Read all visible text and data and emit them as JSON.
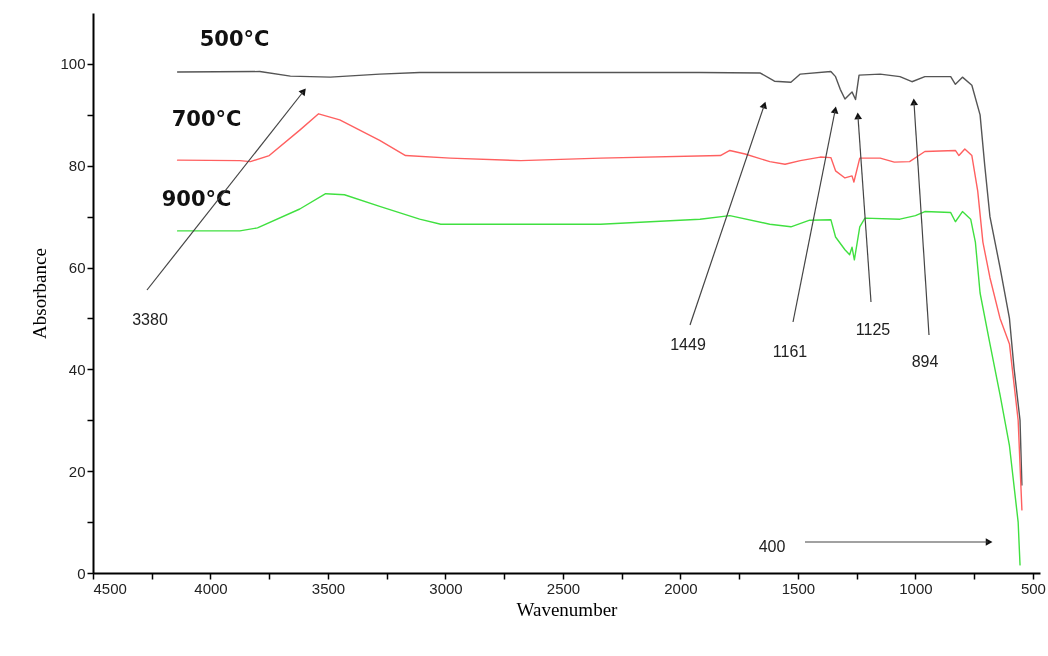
{
  "chart_data": {
    "type": "line",
    "xlabel": "Wavenumber",
    "ylabel": "Absorbance",
    "xlim": [
      4500,
      470
    ],
    "ylim": [
      0,
      110
    ],
    "xticks": [
      4500,
      {
        "value": 4250,
        "label": null
      },
      4000,
      {
        "value": 3750,
        "label": null
      },
      3500,
      {
        "value": 3250,
        "label": null
      },
      3000,
      {
        "value": 2750,
        "label": null
      },
      2500,
      {
        "value": 2250,
        "label": null
      },
      2000,
      {
        "value": 1750,
        "label": null
      },
      1500,
      {
        "value": 1250,
        "label": null
      },
      1000,
      {
        "value": 750,
        "label": null
      },
      500
    ],
    "yticks": [
      0,
      {
        "value": 10,
        "label": null
      },
      20,
      {
        "value": 30,
        "label": null
      },
      40,
      {
        "value": 50,
        "label": null
      },
      60,
      {
        "value": 70,
        "label": null
      },
      80,
      {
        "value": 90,
        "label": null
      },
      100
    ],
    "grid": false,
    "marker": "none",
    "line_style": "solid",
    "series": [
      {
        "name": "500°C",
        "color": "#555555",
        "x": [
          4140,
          3790,
          3660,
          3490,
          3280,
          3110,
          1917,
          1660,
          1600,
          1530,
          1490,
          1360,
          1340,
          1320,
          1300,
          1270,
          1255,
          1240,
          1150,
          1066,
          1015,
          960,
          850,
          830,
          800,
          760,
          725,
          705,
          683,
          640,
          600,
          580,
          555,
          547
        ],
        "values": [
          98.4,
          98.5,
          97.6,
          97.4,
          98,
          98.3,
          98.3,
          98.2,
          96.6,
          96.4,
          98,
          98.5,
          97.5,
          95,
          93.1,
          94.5,
          93,
          97.8,
          98,
          97.5,
          96.5,
          97.5,
          97.5,
          96,
          97.4,
          95.8,
          90,
          80,
          70,
          60,
          50,
          40,
          30,
          17.3
        ]
      },
      {
        "name": "700°C",
        "color": "#ff6060",
        "x": [
          4140,
          3875,
          3830,
          3750,
          3620,
          3540,
          3450,
          3280,
          3170,
          2980,
          2680,
          2340,
          1830,
          1790,
          1725,
          1620,
          1555,
          1490,
          1405,
          1360,
          1340,
          1300,
          1270,
          1262,
          1237,
          1150,
          1090,
          1025,
          960,
          830,
          815,
          790,
          760,
          735,
          713,
          683,
          640,
          600,
          563,
          547
        ],
        "values": [
          81.1,
          81,
          80.8,
          82,
          87,
          90.2,
          89,
          85,
          82,
          81.5,
          81,
          81.5,
          82,
          83,
          82.3,
          80.8,
          80.3,
          81,
          81.7,
          81.6,
          79,
          77.6,
          78,
          76.8,
          81.5,
          81.5,
          80.7,
          80.8,
          82.8,
          83,
          82,
          83.3,
          82,
          75,
          65,
          58,
          50,
          45,
          30,
          12.4
        ]
      },
      {
        "name": "900°C",
        "color": "#40e040",
        "x": [
          4140,
          3875,
          3800,
          3620,
          3510,
          3430,
          3280,
          3110,
          3020,
          2340,
          1917,
          1790,
          1620,
          1530,
          1450,
          1360,
          1340,
          1300,
          1280,
          1270,
          1260,
          1237,
          1215,
          1066,
          1000,
          960,
          850,
          830,
          800,
          765,
          745,
          725,
          683,
          640,
          600,
          563,
          555
        ],
        "values": [
          67.2,
          67.2,
          67.8,
          71.5,
          74.5,
          74.3,
          72,
          69.5,
          68.5,
          68.5,
          69.5,
          70.2,
          68.5,
          68,
          69.3,
          69.4,
          66,
          63.5,
          62.5,
          64,
          61.5,
          68,
          69.7,
          69.5,
          70.2,
          71,
          70.8,
          69,
          71,
          69.5,
          65,
          55,
          45,
          35,
          25,
          10,
          1.6
        ]
      }
    ],
    "annotations": [
      "3380",
      "1449",
      "1161",
      "1125",
      "894",
      "400"
    ]
  }
}
